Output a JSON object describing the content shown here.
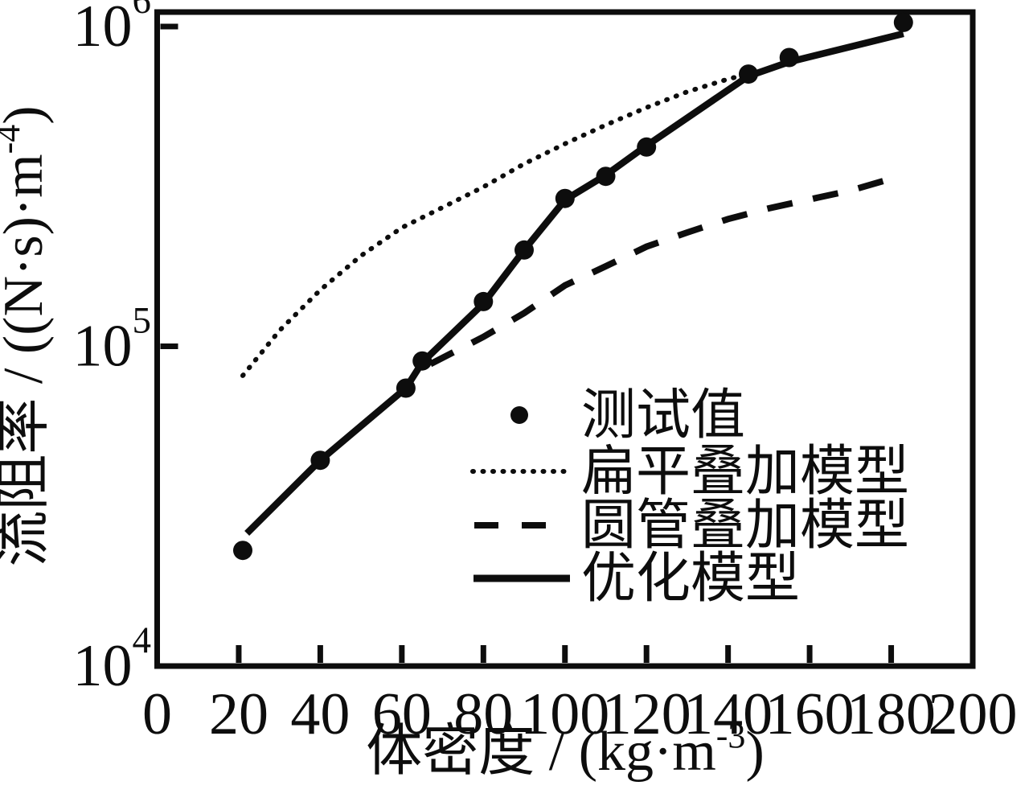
{
  "figure": {
    "background": "#ffffff",
    "ink": "#0d0d0d"
  },
  "chart_data": {
    "type": "line",
    "title": "",
    "x_axis": {
      "label": {
        "text": "体密度 / (kg·m⁻³)",
        "main": "体密度 / (kg·m",
        "sup": "-3",
        "close": ")"
      },
      "scale": "linear",
      "min": 0,
      "max": 200,
      "ticks": [
        0,
        20,
        40,
        60,
        80,
        100,
        120,
        140,
        160,
        180,
        200
      ]
    },
    "y_axis": {
      "label": {
        "text": "流阻率 / ((N·s)·m⁻⁴)",
        "main": "流阻率 / ((N·s)·m",
        "sup": "-4",
        "close": ")"
      },
      "scale": "log",
      "min": 10000,
      "max": 1100000,
      "ticks": [
        {
          "value": 10000,
          "base": "10",
          "exp": "4"
        },
        {
          "value": 100000,
          "base": "10",
          "exp": "5"
        },
        {
          "value": 1000000,
          "base": "10",
          "exp": "6"
        }
      ]
    },
    "series": [
      {
        "name": "测试值",
        "type": "scatter",
        "marker": "filled-circle",
        "points": [
          [
            21,
            23000
          ],
          [
            40,
            44000
          ],
          [
            61,
            74000
          ],
          [
            65,
            90000
          ],
          [
            80,
            138000
          ],
          [
            90,
            200000
          ],
          [
            100,
            290000
          ],
          [
            110,
            340000
          ],
          [
            120,
            420000
          ],
          [
            145,
            710000
          ],
          [
            155,
            800000
          ],
          [
            183,
            1030000
          ]
        ]
      },
      {
        "name": "扁平叠加模型",
        "type": "line",
        "line_style": "dotted",
        "points": [
          [
            21,
            81000
          ],
          [
            30,
            112000
          ],
          [
            40,
            150000
          ],
          [
            50,
            192000
          ],
          [
            60,
            235000
          ],
          [
            70,
            272000
          ],
          [
            80,
            315000
          ],
          [
            90,
            372000
          ],
          [
            100,
            430000
          ],
          [
            110,
            492000
          ],
          [
            120,
            558000
          ],
          [
            130,
            625000
          ],
          [
            140,
            685000
          ],
          [
            145,
            710000
          ]
        ]
      },
      {
        "name": "圆管叠加模型",
        "type": "line",
        "line_style": "dashed",
        "points": [
          [
            67,
            88000
          ],
          [
            80,
            107000
          ],
          [
            90,
            127000
          ],
          [
            100,
            155000
          ],
          [
            110,
            178000
          ],
          [
            120,
            205000
          ],
          [
            130,
            227000
          ],
          [
            140,
            250000
          ],
          [
            150,
            270000
          ],
          [
            160,
            288000
          ],
          [
            170,
            307000
          ],
          [
            182,
            340000
          ]
        ]
      },
      {
        "name": "优化模型",
        "type": "line",
        "line_style": "solid",
        "points": [
          [
            22,
            26000
          ],
          [
            40,
            44000
          ],
          [
            61,
            74000
          ],
          [
            65,
            89000
          ],
          [
            80,
            136000
          ],
          [
            90,
            200000
          ],
          [
            100,
            287000
          ],
          [
            110,
            343000
          ],
          [
            120,
            424000
          ],
          [
            145,
            700000
          ],
          [
            155,
            775000
          ],
          [
            183,
            950000
          ]
        ]
      }
    ],
    "legend": {
      "position": "inside-middle-right",
      "entries": [
        {
          "label": "测试值",
          "marker": "dot"
        },
        {
          "label": "扁平叠加模型",
          "marker": "dotted-line"
        },
        {
          "label": "圆管叠加模型",
          "marker": "dashed-line"
        },
        {
          "label": "优化模型",
          "marker": "solid-line"
        }
      ]
    }
  }
}
